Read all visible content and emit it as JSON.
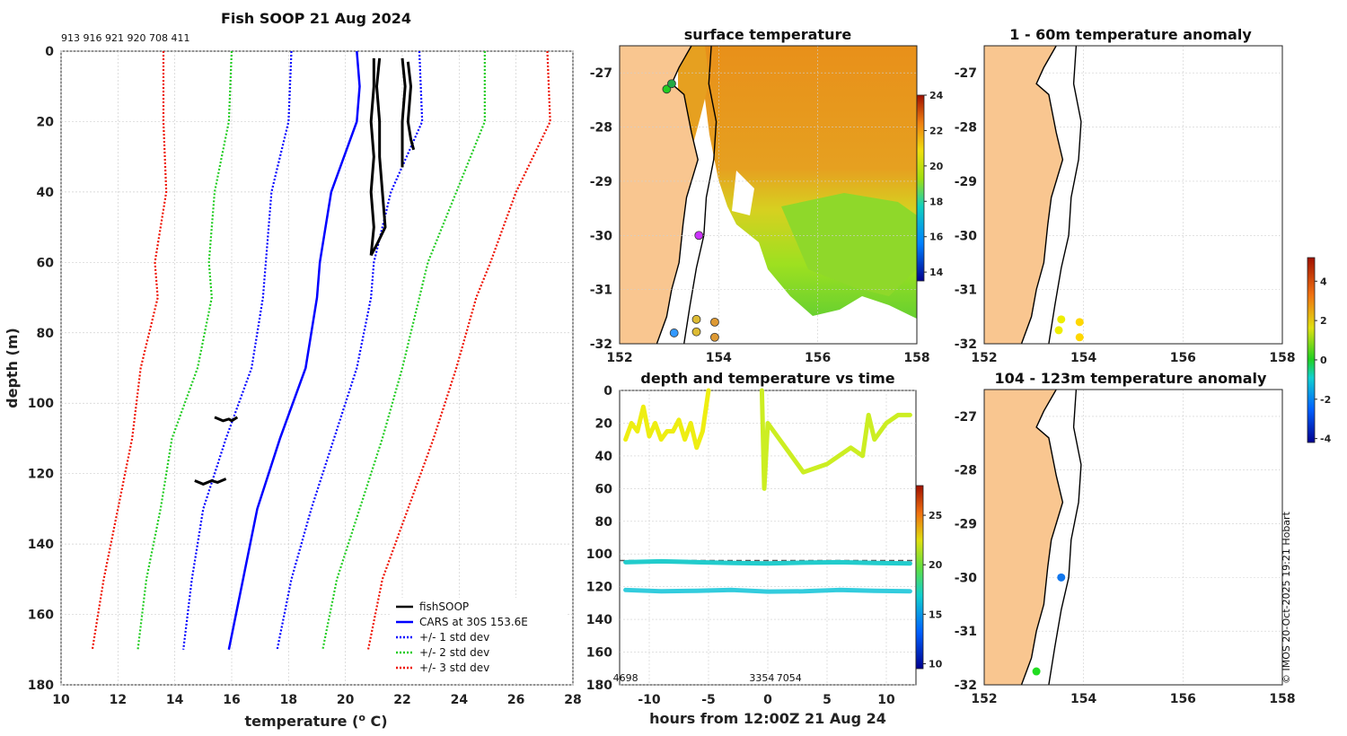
{
  "chart_data": [
    {
      "type": "line",
      "title": "Fish SOOP 21 Aug 2024",
      "ids_label": "913 916 921 920 708 411",
      "xlabel": "temperature (",
      "xlabel_sup": "o",
      "xlabel_end": " C)",
      "ylabel": "depth (m)",
      "xlim": [
        10,
        28
      ],
      "ylim": [
        180,
        0
      ],
      "xticks": [
        10,
        12,
        14,
        16,
        18,
        20,
        22,
        24,
        26,
        28
      ],
      "yticks": [
        0,
        20,
        40,
        60,
        80,
        100,
        120,
        140,
        160,
        180
      ],
      "legend": [
        "fishSOOP",
        "CARS at 30S 153.6E",
        "+/- 1 std dev",
        "+/- 2 std dev",
        "+/- 3 std dev"
      ],
      "series": [
        {
          "name": "CARS at 30S 153.6E",
          "color": "#0000ff",
          "style": "solid",
          "depth": [
            0,
            10,
            20,
            40,
            60,
            70,
            90,
            110,
            130,
            150,
            170
          ],
          "temp": [
            20.4,
            20.5,
            20.4,
            19.5,
            19.1,
            19.0,
            18.6,
            17.7,
            16.9,
            16.4,
            15.9
          ]
        },
        {
          "name": "+1 std dev",
          "color": "#0000ff",
          "style": "dotted",
          "depth": [
            0,
            20,
            40,
            60,
            70,
            90,
            110,
            130,
            150,
            170
          ],
          "temp": [
            22.6,
            22.7,
            21.6,
            21.0,
            20.9,
            20.4,
            19.6,
            18.8,
            18.1,
            17.6
          ]
        },
        {
          "name": "-1 std dev",
          "color": "#0000ff",
          "style": "dotted",
          "depth": [
            0,
            20,
            40,
            60,
            70,
            90,
            110,
            130,
            150,
            170
          ],
          "temp": [
            18.1,
            18.0,
            17.4,
            17.2,
            17.1,
            16.7,
            15.8,
            15.0,
            14.6,
            14.3
          ]
        },
        {
          "name": "+2 std dev",
          "color": "#22cc22",
          "style": "dotted",
          "depth": [
            0,
            20,
            40,
            60,
            70,
            90,
            110,
            130,
            150,
            170
          ],
          "temp": [
            24.9,
            24.9,
            23.9,
            22.9,
            22.6,
            22.0,
            21.3,
            20.5,
            19.7,
            19.2
          ]
        },
        {
          "name": "-2 std dev",
          "color": "#22cc22",
          "style": "dotted",
          "depth": [
            0,
            20,
            40,
            60,
            70,
            90,
            110,
            130,
            150,
            170
          ],
          "temp": [
            16.0,
            15.9,
            15.4,
            15.2,
            15.3,
            14.8,
            13.9,
            13.5,
            13.0,
            12.7
          ]
        },
        {
          "name": "+3 std dev",
          "color": "#ee1100",
          "style": "dotted",
          "depth": [
            0,
            20,
            40,
            60,
            70,
            90,
            110,
            130,
            150,
            170
          ],
          "temp": [
            27.1,
            27.2,
            26.0,
            25.1,
            24.6,
            23.9,
            23.1,
            22.2,
            21.3,
            20.8
          ]
        },
        {
          "name": "-3 std dev",
          "color": "#ee1100",
          "style": "dotted",
          "depth": [
            0,
            20,
            40,
            60,
            70,
            90,
            110,
            130,
            150,
            170
          ],
          "temp": [
            13.6,
            13.6,
            13.7,
            13.3,
            13.4,
            12.8,
            12.5,
            12.0,
            11.5,
            11.1
          ]
        }
      ],
      "fishsoop": [
        {
          "depth": [
            2,
            10,
            20,
            30,
            40,
            50,
            55,
            58
          ],
          "temp": [
            21.2,
            21.1,
            21.2,
            21.2,
            21.3,
            21.4,
            21.1,
            20.9
          ]
        },
        {
          "depth": [
            2,
            10,
            20,
            30,
            40,
            50,
            58
          ],
          "temp": [
            21.0,
            21.0,
            20.9,
            21.0,
            20.9,
            21.0,
            20.9
          ]
        },
        {
          "depth": [
            3,
            10,
            20,
            25,
            28
          ],
          "temp": [
            22.2,
            22.3,
            22.2,
            22.3,
            22.4
          ]
        },
        {
          "depth": [
            2,
            10,
            20,
            30,
            33
          ],
          "temp": [
            22.0,
            22.1,
            22.0,
            22.0,
            22.0
          ]
        },
        {
          "depth": [
            104,
            105,
            104.5,
            105,
            104
          ],
          "temp": [
            15.4,
            15.7,
            15.9,
            16.0,
            16.2
          ]
        },
        {
          "depth": [
            122,
            123,
            122,
            122.5,
            121.5
          ],
          "temp": [
            14.7,
            15.0,
            15.3,
            15.5,
            15.8
          ]
        }
      ]
    },
    {
      "type": "scatter",
      "title": "surface temperature",
      "xlim": [
        152,
        158
      ],
      "ylim": [
        -32,
        -26.5
      ],
      "xticks": [
        152,
        154,
        156,
        158
      ],
      "yticks": [
        -27,
        -28,
        -29,
        -30,
        -31,
        -32
      ],
      "colorbar": {
        "min": 13.5,
        "max": 24,
        "ticks": [
          14,
          16,
          18,
          20,
          22,
          24
        ]
      },
      "points": [
        {
          "lon": 153.6,
          "lat": -30.0,
          "color": "#cc33ff"
        },
        {
          "lon": 153.1,
          "lat": -31.8,
          "color": "#3399ff"
        },
        {
          "lon": 153.55,
          "lat": -31.55,
          "color": "#ddbb33"
        },
        {
          "lon": 153.55,
          "lat": -31.78,
          "color": "#ddbb33"
        },
        {
          "lon": 153.92,
          "lat": -31.6,
          "color": "#dd9933"
        },
        {
          "lon": 153.92,
          "lat": -31.88,
          "color": "#dd9933"
        },
        {
          "lon": 152.95,
          "lat": -27.3,
          "color": "#22cc22"
        },
        {
          "lon": 153.05,
          "lat": -27.2,
          "color": "#22aa44"
        }
      ]
    },
    {
      "type": "scatter",
      "title": "1 - 60m temperature anomaly",
      "xlim": [
        152,
        158
      ],
      "ylim": [
        -32,
        -26.5
      ],
      "xticks": [
        152,
        154,
        156,
        158
      ],
      "yticks": [
        -27,
        -28,
        -29,
        -30,
        -31,
        -32
      ],
      "points": [
        {
          "lon": 153.55,
          "lat": -31.55,
          "color": "#eeee00"
        },
        {
          "lon": 153.5,
          "lat": -31.75,
          "color": "#eeee00"
        },
        {
          "lon": 153.92,
          "lat": -31.6,
          "color": "#ffd700"
        },
        {
          "lon": 153.92,
          "lat": -31.88,
          "color": "#ffd700"
        }
      ]
    },
    {
      "type": "scatter",
      "title": "104 - 123m temperature anomaly",
      "xlim": [
        152,
        158
      ],
      "ylim": [
        -32,
        -26.5
      ],
      "xticks": [
        152,
        154,
        156,
        158
      ],
      "yticks": [
        -27,
        -28,
        -29,
        -30,
        -31,
        -32
      ],
      "colorbar": {
        "min": -4.2,
        "max": 5.2,
        "ticks": [
          4,
          2,
          0,
          -2,
          -4
        ]
      },
      "points": [
        {
          "lon": 153.55,
          "lat": -30.0,
          "color": "#1177ee"
        },
        {
          "lon": 153.05,
          "lat": -31.75,
          "color": "#22dd22"
        }
      ]
    },
    {
      "type": "line",
      "title": "depth and temperature vs time",
      "xlabel": "hours from 12:00Z 21 Aug 24",
      "xlim": [
        -12.5,
        12.5
      ],
      "ylim": [
        180,
        0
      ],
      "xticks": [
        -10,
        -5,
        0,
        5,
        10
      ],
      "yticks": [
        0,
        20,
        40,
        60,
        80,
        100,
        120,
        140,
        160,
        180
      ],
      "colorbar": {
        "min": 9.5,
        "max": 28,
        "ticks": [
          10,
          15,
          20,
          25
        ]
      },
      "bottom_labels": [
        {
          "text": "4698",
          "x": -12
        },
        {
          "text": "3354",
          "x": -0.5
        },
        {
          "text": "7054",
          "x": 1.8
        }
      ],
      "dashed_depth": 104,
      "tracks": [
        {
          "color": "#eeee11",
          "times": [
            -12,
            -11.5,
            -11,
            -10.5,
            -10,
            -9.5,
            -9,
            -8.5,
            -8,
            -7.5,
            -7,
            -6.5,
            -6,
            -5.5,
            -5
          ],
          "depths": [
            30,
            20,
            25,
            10,
            28,
            20,
            30,
            25,
            25,
            18,
            30,
            20,
            35,
            25,
            0
          ]
        },
        {
          "color": "#ccee22",
          "times": [
            -0.5,
            -0.3,
            0,
            0.5,
            1,
            2,
            3,
            5,
            7,
            8,
            8.5,
            9,
            10,
            11,
            12
          ],
          "depths": [
            0,
            60,
            20,
            25,
            30,
            40,
            50,
            45,
            35,
            40,
            15,
            30,
            20,
            15,
            15
          ]
        },
        {
          "color": "#22cccc",
          "times": [
            -12,
            -9,
            -6,
            -3,
            0,
            3,
            6,
            9,
            12
          ],
          "depths": [
            105,
            104.5,
            105,
            105.5,
            105.8,
            105.3,
            105,
            105.5,
            105.8
          ]
        },
        {
          "color": "#33ccdd",
          "times": [
            -12,
            -9,
            -6,
            -3,
            0,
            3,
            6,
            9,
            12
          ],
          "depths": [
            122,
            122.8,
            122.5,
            122,
            123,
            122.8,
            122,
            122.5,
            122.8
          ]
        }
      ]
    }
  ],
  "copyright": "© IMOS 20-Oct-2025 19:21 Hobart",
  "colors": {
    "land": "#f9c690",
    "grid": "#cfcfcf",
    "ink": "#222222"
  }
}
